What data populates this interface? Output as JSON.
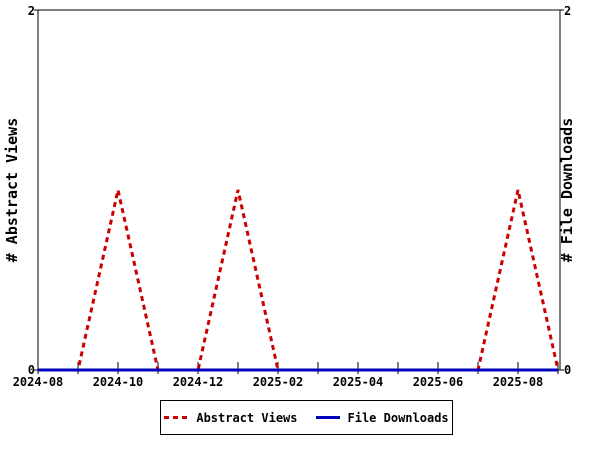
{
  "chart_data": {
    "type": "line",
    "title": "",
    "x": [
      "2024-08",
      "2024-09",
      "2024-10",
      "2024-11",
      "2024-12",
      "2025-01",
      "2025-02",
      "2025-03",
      "2025-04",
      "2025-05",
      "2025-06",
      "2025-07",
      "2025-08",
      "2025-09"
    ],
    "x_tick_labels": [
      "2024-08",
      "2024-10",
      "2024-12",
      "2025-02",
      "2025-04",
      "2025-06",
      "2025-08"
    ],
    "series": [
      {
        "name": "Abstract Views",
        "color": "#cc0000",
        "line_style": "dashed",
        "values": [
          0,
          0,
          1,
          0,
          0,
          1,
          0,
          0,
          0,
          0,
          0,
          0,
          1,
          0
        ]
      },
      {
        "name": "File Downloads",
        "color": "#0000bb",
        "line_style": "solid",
        "values": [
          0,
          0,
          0,
          0,
          0,
          0,
          0,
          0,
          0,
          0,
          0,
          0,
          0,
          0
        ]
      }
    ],
    "ylabel_left": "# Abstract Views",
    "ylabel_right": "# File Downloads",
    "ylim": [
      0,
      2
    ],
    "y_tick_labels": [
      "2",
      "0"
    ],
    "grid": false,
    "legend_position": "bottom-center",
    "axis_color": "#000000",
    "background": "#ffffff"
  }
}
